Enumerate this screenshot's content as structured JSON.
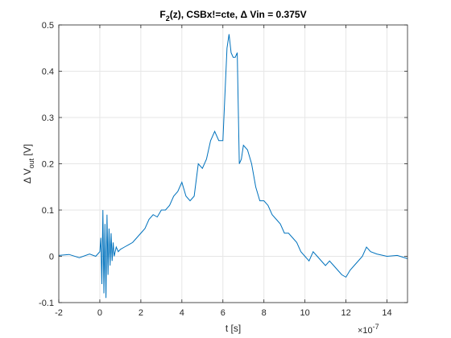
{
  "chart_data": {
    "type": "line",
    "title_parts": {
      "pre": "F",
      "sub": "2",
      "post": "(z), CSBx!=cte, Δ Vin = 0.375V"
    },
    "xlabel": "t [s]",
    "ylabel_parts": {
      "pre": "Δ V",
      "sub": "out",
      "post": " [V]"
    },
    "x_exponent_parts": {
      "base": "×10",
      "exp": "-7"
    },
    "xlim": [
      -2,
      15
    ],
    "ylim": [
      -0.1,
      0.5
    ],
    "xticks": [
      "-2",
      "0",
      "2",
      "4",
      "6",
      "8",
      "10",
      "12",
      "14"
    ],
    "yticks": [
      "-0.1",
      "0",
      "0.1",
      "0.2",
      "0.3",
      "0.4",
      "0.5"
    ],
    "grid": true,
    "colors": {
      "line": "#0072BD",
      "grid": "#e6e6e6",
      "axis": "#262626"
    },
    "series": [
      {
        "x": [
          -2,
          -1.5,
          -1,
          -0.5,
          -0.2,
          0,
          0.05,
          0.1,
          0.15,
          0.2,
          0.25,
          0.3,
          0.35,
          0.4,
          0.45,
          0.5,
          0.55,
          0.6,
          0.65,
          0.7,
          0.8,
          0.9,
          1.0,
          1.2,
          1.4,
          1.6,
          1.8,
          2.0,
          2.2,
          2.4,
          2.6,
          2.8,
          3.0,
          3.2,
          3.4,
          3.6,
          3.8,
          4.0,
          4.2,
          4.4,
          4.6,
          4.8,
          5.0,
          5.2,
          5.4,
          5.6,
          5.8,
          6.0,
          6.1,
          6.2,
          6.3,
          6.4,
          6.5,
          6.6,
          6.7,
          6.8,
          6.9,
          7.0,
          7.2,
          7.4,
          7.6,
          7.8,
          8.0,
          8.2,
          8.4,
          8.6,
          8.8,
          9.0,
          9.2,
          9.4,
          9.6,
          9.8,
          10.0,
          10.2,
          10.4,
          10.6,
          10.8,
          11.0,
          11.2,
          11.4,
          11.6,
          11.8,
          12.0,
          12.2,
          12.4,
          12.6,
          12.8,
          13.0,
          13.2,
          13.5,
          14.0,
          14.5,
          15.0
        ],
        "y": [
          0.002,
          0.004,
          -0.003,
          0.005,
          0.0,
          0.01,
          0.04,
          -0.06,
          0.1,
          -0.08,
          0.07,
          -0.09,
          0.09,
          -0.04,
          0.06,
          -0.02,
          0.05,
          -0.01,
          0.03,
          0.0,
          0.02,
          0.01,
          0.015,
          0.02,
          0.025,
          0.03,
          0.04,
          0.05,
          0.06,
          0.08,
          0.09,
          0.085,
          0.1,
          0.1,
          0.11,
          0.13,
          0.14,
          0.16,
          0.13,
          0.12,
          0.13,
          0.2,
          0.19,
          0.21,
          0.25,
          0.27,
          0.25,
          0.25,
          0.35,
          0.45,
          0.48,
          0.44,
          0.43,
          0.43,
          0.44,
          0.2,
          0.21,
          0.24,
          0.23,
          0.2,
          0.15,
          0.12,
          0.12,
          0.11,
          0.09,
          0.08,
          0.07,
          0.05,
          0.05,
          0.04,
          0.03,
          0.01,
          0.0,
          -0.01,
          0.01,
          0.0,
          -0.01,
          -0.02,
          -0.01,
          -0.02,
          -0.03,
          -0.04,
          -0.045,
          -0.03,
          -0.02,
          -0.01,
          0.0,
          0.02,
          0.01,
          0.005,
          0.0,
          0.002,
          -0.005
        ]
      }
    ]
  }
}
